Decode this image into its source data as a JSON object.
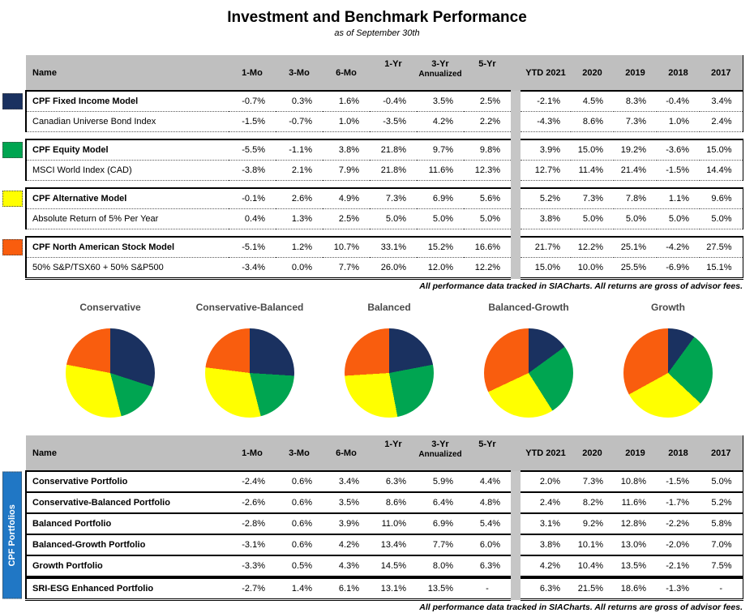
{
  "title": "Investment and Benchmark Performance",
  "subtitle": "as of September 30th",
  "footnote": "All performance data tracked in SIACharts. All returns are gross of advisor fees.",
  "colors": {
    "navy": "#1A3160",
    "green": "#00A551",
    "yellow": "#FFFF00",
    "orange": "#F95D0E",
    "banner_blue": "#2077C5",
    "header_gray": "#BFBFBF",
    "stripe_gray": "#C6C6C6"
  },
  "columns": {
    "name": "Name",
    "returns": [
      "1-Mo",
      "3-Mo",
      "6-Mo",
      "1-Yr",
      "3-Yr",
      "5-Yr"
    ],
    "annualized_label": "Annualized",
    "years": [
      "YTD 2021",
      "2020",
      "2019",
      "2018",
      "2017"
    ]
  },
  "models_table": {
    "groups": [
      {
        "swatch": "navy",
        "rows": [
          {
            "name": "CPF Fixed Income Model",
            "bold": true,
            "returns": [
              "-0.7%",
              "0.3%",
              "1.6%",
              "-0.4%",
              "3.5%",
              "2.5%"
            ],
            "years": [
              "-2.1%",
              "4.5%",
              "8.3%",
              "-0.4%",
              "3.4%"
            ]
          },
          {
            "name": "Canadian Universe Bond Index",
            "bold": false,
            "returns": [
              "-1.5%",
              "-0.7%",
              "1.0%",
              "-3.5%",
              "4.2%",
              "2.2%"
            ],
            "years": [
              "-4.3%",
              "8.6%",
              "7.3%",
              "1.0%",
              "2.4%"
            ]
          }
        ]
      },
      {
        "swatch": "green",
        "rows": [
          {
            "name": "CPF Equity Model",
            "bold": true,
            "returns": [
              "-5.5%",
              "-1.1%",
              "3.8%",
              "21.8%",
              "9.7%",
              "9.8%"
            ],
            "years": [
              "3.9%",
              "15.0%",
              "19.2%",
              "-3.6%",
              "15.0%"
            ]
          },
          {
            "name": "MSCI World Index (CAD)",
            "bold": false,
            "returns": [
              "-3.8%",
              "2.1%",
              "7.9%",
              "21.8%",
              "11.6%",
              "12.3%"
            ],
            "years": [
              "12.7%",
              "11.4%",
              "21.4%",
              "-1.5%",
              "14.4%"
            ]
          }
        ]
      },
      {
        "swatch": "yellow",
        "rows": [
          {
            "name": "CPF Alternative Model",
            "bold": true,
            "returns": [
              "-0.1%",
              "2.6%",
              "4.9%",
              "7.3%",
              "6.9%",
              "5.6%"
            ],
            "years": [
              "5.2%",
              "7.3%",
              "7.8%",
              "1.1%",
              "9.6%"
            ]
          },
          {
            "name": "Absolute Return of 5% Per Year",
            "bold": false,
            "returns": [
              "0.4%",
              "1.3%",
              "2.5%",
              "5.0%",
              "5.0%",
              "5.0%"
            ],
            "years": [
              "3.8%",
              "5.0%",
              "5.0%",
              "5.0%",
              "5.0%"
            ]
          }
        ]
      },
      {
        "swatch": "orange",
        "rows": [
          {
            "name": "CPF North American Stock Model",
            "bold": true,
            "returns": [
              "-5.1%",
              "1.2%",
              "10.7%",
              "33.1%",
              "15.2%",
              "16.6%"
            ],
            "years": [
              "21.7%",
              "12.2%",
              "25.1%",
              "-4.2%",
              "27.5%"
            ]
          },
          {
            "name": "50% S&P/TSX60 + 50% S&P500",
            "bold": false,
            "returns": [
              "-3.4%",
              "0.0%",
              "7.7%",
              "26.0%",
              "12.0%",
              "12.2%"
            ],
            "years": [
              "15.0%",
              "10.0%",
              "25.5%",
              "-6.9%",
              "15.1%"
            ]
          }
        ]
      }
    ]
  },
  "portfolios_table": {
    "banner": "CPF Portfolios",
    "rows": [
      {
        "name": "Conservative Portfolio",
        "returns": [
          "-2.4%",
          "0.6%",
          "3.4%",
          "6.3%",
          "5.9%",
          "4.4%"
        ],
        "years": [
          "2.0%",
          "7.3%",
          "10.8%",
          "-1.5%",
          "5.0%"
        ]
      },
      {
        "name": "Conservative-Balanced Portfolio",
        "returns": [
          "-2.6%",
          "0.6%",
          "3.5%",
          "8.6%",
          "6.4%",
          "4.8%"
        ],
        "years": [
          "2.4%",
          "8.2%",
          "11.6%",
          "-1.7%",
          "5.2%"
        ]
      },
      {
        "name": "Balanced Portfolio",
        "returns": [
          "-2.8%",
          "0.6%",
          "3.9%",
          "11.0%",
          "6.9%",
          "5.4%"
        ],
        "years": [
          "3.1%",
          "9.2%",
          "12.8%",
          "-2.2%",
          "5.8%"
        ]
      },
      {
        "name": "Balanced-Growth Portfolio",
        "returns": [
          "-3.1%",
          "0.6%",
          "4.2%",
          "13.4%",
          "7.7%",
          "6.0%"
        ],
        "years": [
          "3.8%",
          "10.1%",
          "13.0%",
          "-2.0%",
          "7.0%"
        ]
      },
      {
        "name": "Growth Portfolio",
        "returns": [
          "-3.3%",
          "0.5%",
          "4.3%",
          "14.5%",
          "8.0%",
          "6.3%"
        ],
        "years": [
          "4.2%",
          "10.4%",
          "13.5%",
          "-2.1%",
          "7.5%"
        ]
      },
      {
        "name": "SRI-ESG Enhanced Portfolio",
        "thick_top": true,
        "returns": [
          "-2.7%",
          "1.4%",
          "6.1%",
          "13.1%",
          "13.5%",
          "-"
        ],
        "years": [
          "6.3%",
          "21.5%",
          "18.6%",
          "-1.3%",
          "-"
        ]
      }
    ]
  },
  "chart_data": [
    {
      "type": "pie",
      "title": "Conservative",
      "labels": [
        "CPF Fixed Income Model",
        "CPF Equity Model",
        "CPF Alternative Model",
        "CPF North American Stock Model"
      ],
      "values": [
        30,
        16,
        32,
        22
      ],
      "colors": [
        "#1A3160",
        "#00A551",
        "#FFFF00",
        "#F95D0E"
      ],
      "legend": "none",
      "values_estimated_from_angles": true
    },
    {
      "type": "pie",
      "title": "Conservative-Balanced",
      "labels": [
        "CPF Fixed Income Model",
        "CPF Equity Model",
        "CPF Alternative Model",
        "CPF North American Stock Model"
      ],
      "values": [
        26,
        20,
        31,
        23
      ],
      "colors": [
        "#1A3160",
        "#00A551",
        "#FFFF00",
        "#F95D0E"
      ],
      "legend": "none",
      "values_estimated_from_angles": true
    },
    {
      "type": "pie",
      "title": "Balanced",
      "labels": [
        "CPF Fixed Income Model",
        "CPF Equity Model",
        "CPF Alternative Model",
        "CPF North American Stock Model"
      ],
      "values": [
        22,
        25,
        27,
        26
      ],
      "colors": [
        "#1A3160",
        "#00A551",
        "#FFFF00",
        "#F95D0E"
      ],
      "legend": "none",
      "values_estimated_from_angles": true
    },
    {
      "type": "pie",
      "title": "Balanced-Growth",
      "labels": [
        "CPF Fixed Income Model",
        "CPF Equity Model",
        "CPF Alternative Model",
        "CPF North American Stock Model"
      ],
      "values": [
        15,
        26,
        27,
        32
      ],
      "colors": [
        "#1A3160",
        "#00A551",
        "#FFFF00",
        "#F95D0E"
      ],
      "legend": "none",
      "values_estimated_from_angles": true
    },
    {
      "type": "pie",
      "title": "Growth",
      "labels": [
        "CPF Fixed Income Model",
        "CPF Equity Model",
        "CPF Alternative Model",
        "CPF North American Stock Model"
      ],
      "values": [
        10,
        27,
        30,
        33
      ],
      "colors": [
        "#1A3160",
        "#00A551",
        "#FFFF00",
        "#F95D0E"
      ],
      "legend": "none",
      "values_estimated_from_angles": true
    }
  ]
}
